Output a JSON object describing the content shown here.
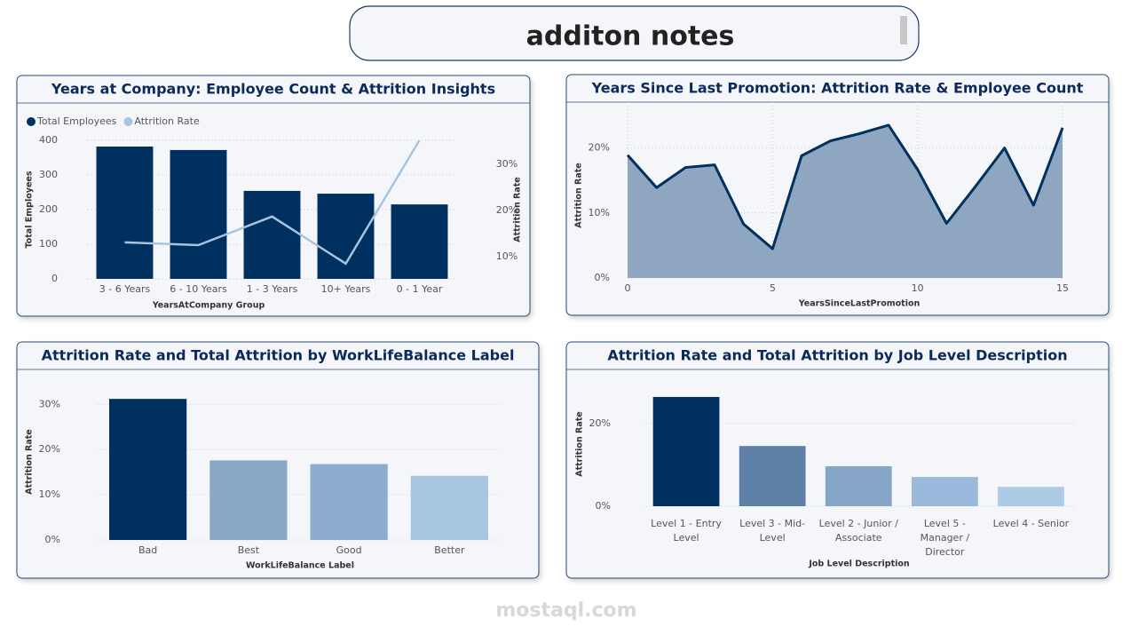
{
  "title": "additon notes",
  "watermark": "mostaql.com",
  "chart_data": [
    {
      "type": "bar",
      "title": "Years at Company: Employee Count & Attrition Insights",
      "categories": [
        "3 - 6 Years",
        "6 - 10 Years",
        "1 - 3 Years",
        "10+ Years",
        "0 - 1 Year"
      ],
      "series": [
        {
          "name": "Total Employees",
          "color": "#00305f",
          "values": [
            382,
            372,
            254,
            246,
            215
          ]
        },
        {
          "name": "Attrition Rate",
          "color": "#a8c4e0",
          "values": [
            13.1,
            12.5,
            18.7,
            8.5,
            35.2
          ],
          "axis": "y2"
        }
      ],
      "x_label": "YearsAtCompany Group",
      "y_label": "Total Employees",
      "y2_label": "Attrition Rate",
      "ylim": [
        0,
        400
      ],
      "yticks": [
        0,
        100,
        200,
        300,
        400
      ],
      "y2lim": [
        5.2,
        35.2
      ],
      "y2ticks": [
        {
          "value": 10,
          "label": "10%"
        },
        {
          "value": 20,
          "label": "20%"
        },
        {
          "value": 30,
          "label": "30%"
        }
      ],
      "grid": true,
      "legend": "top-left"
    },
    {
      "type": "area",
      "title": "Years Since Last Promotion: Attrition Rate & Employee Count",
      "x": [
        0,
        1,
        2,
        3,
        4,
        5,
        6,
        7,
        8,
        9,
        10,
        11,
        12,
        13,
        14,
        15
      ],
      "values": [
        18.9,
        13.9,
        17.0,
        17.4,
        8.3,
        4.5,
        18.8,
        21.1,
        22.2,
        23.5,
        16.7,
        8.4,
        14.1,
        20.0,
        11.2,
        23.1
      ],
      "color": "#00305f",
      "fill": "#8ea6c0",
      "x_label": "YearsSinceLastPromotion",
      "y_label": "Attrition Rate",
      "xlim": [
        0,
        15
      ],
      "xticks": [
        0,
        5,
        10,
        15
      ],
      "ylim": [
        0,
        25
      ],
      "yticks": [
        {
          "value": 0,
          "label": "0%"
        },
        {
          "value": 10,
          "label": "10%"
        },
        {
          "value": 20,
          "label": "20%"
        }
      ],
      "grid": true
    },
    {
      "type": "bar",
      "title": "Attrition Rate and Total Attrition by WorkLifeBalance Label",
      "categories": [
        "Bad",
        "Best",
        "Good",
        "Better"
      ],
      "values": [
        31.2,
        17.6,
        16.8,
        14.2
      ],
      "colors": [
        "#00305f",
        "#88a8c8",
        "#8cadcf",
        "#a8c6e2"
      ],
      "x_label": "WorkLifeBalance Label",
      "y_label": "Attrition Rate",
      "ylim": [
        0,
        33
      ],
      "yticks": [
        {
          "value": 0,
          "label": "0%"
        },
        {
          "value": 10,
          "label": "10%"
        },
        {
          "value": 20,
          "label": "20%"
        },
        {
          "value": 30,
          "label": "30%"
        }
      ],
      "grid": true
    },
    {
      "type": "bar",
      "title": "Attrition Rate and Total Attrition by Job Level Description",
      "categories": [
        "Level 1 - Entry Level",
        "Level 3 - Mid-Level",
        "Level 2 - Junior / Associate",
        "Level 5 - Manager / Director",
        "Level 4 - Senior"
      ],
      "values": [
        26.5,
        14.6,
        9.7,
        7.1,
        4.7
      ],
      "colors": [
        "#00305f",
        "#5f80a6",
        "#86a6c7",
        "#9bbadb",
        "#aecbe6"
      ],
      "x_label": "Job Level Description",
      "y_label": "Attrition Rate",
      "ylim": [
        0,
        28
      ],
      "yticks": [
        {
          "value": 0,
          "label": "0%"
        },
        {
          "value": 20,
          "label": "20%"
        }
      ],
      "grid": true
    }
  ]
}
